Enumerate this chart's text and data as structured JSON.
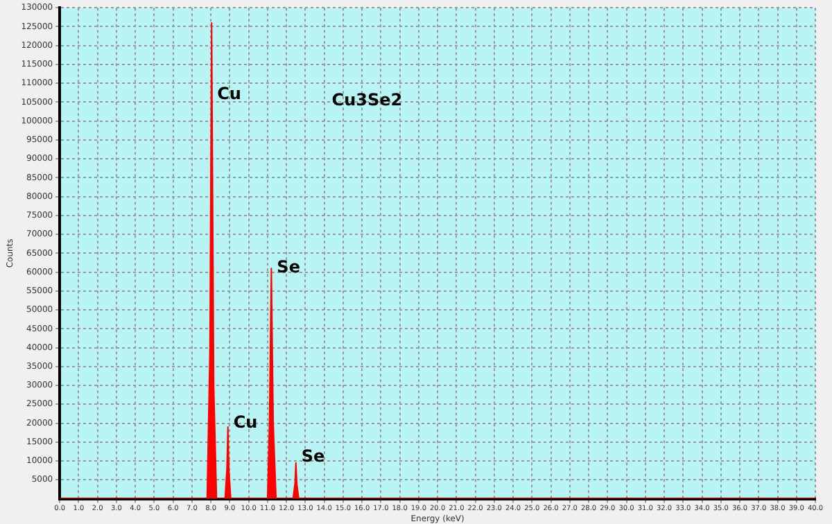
{
  "chart_data": {
    "type": "area",
    "xlabel": "Energy (keV)",
    "ylabel": "Counts",
    "x": [
      0,
      7.8,
      7.95,
      8.04,
      8.15,
      8.3,
      8.75,
      8.85,
      8.9,
      8.95,
      9.05,
      11.0,
      11.1,
      11.2,
      11.3,
      11.45,
      12.35,
      12.45,
      12.5,
      12.55,
      12.65,
      40
    ],
    "series": [
      {
        "color": "#ff0000",
        "values": [
          0,
          0,
          40000,
          126000,
          30000,
          0,
          0,
          8000,
          19000,
          8000,
          0,
          0,
          20000,
          61000,
          20000,
          0,
          0,
          4000,
          9500,
          4000,
          0,
          0
        ]
      }
    ],
    "xlim": [
      0,
      40
    ],
    "xticks": [
      {
        "value": 0,
        "label": "0.0"
      },
      {
        "value": 1,
        "label": "1.0"
      },
      {
        "value": 2,
        "label": "2.0"
      },
      {
        "value": 3,
        "label": "3.0"
      },
      {
        "value": 4,
        "label": "4.0"
      },
      {
        "value": 5,
        "label": "5.0"
      },
      {
        "value": 6,
        "label": "6.0"
      },
      {
        "value": 7,
        "label": "7.0"
      },
      {
        "value": 8,
        "label": "8.0"
      },
      {
        "value": 9,
        "label": "9.0"
      },
      {
        "value": 10,
        "label": "10.0"
      },
      {
        "value": 11,
        "label": "11.0"
      },
      {
        "value": 12,
        "label": "12.0"
      },
      {
        "value": 13,
        "label": "13.0"
      },
      {
        "value": 14,
        "label": "14.0"
      },
      {
        "value": 15,
        "label": "15.0"
      },
      {
        "value": 16,
        "label": "16.0"
      },
      {
        "value": 17,
        "label": "17.0"
      },
      {
        "value": 18,
        "label": "18.0"
      },
      {
        "value": 19,
        "label": "19.0"
      },
      {
        "value": 20,
        "label": "20.0"
      },
      {
        "value": 21,
        "label": "21.0"
      },
      {
        "value": 22,
        "label": "22.0"
      },
      {
        "value": 23,
        "label": "23.0"
      },
      {
        "value": 24,
        "label": "24.0"
      },
      {
        "value": 25,
        "label": "25.0"
      },
      {
        "value": 26,
        "label": "26.0"
      },
      {
        "value": 27,
        "label": "27.0"
      },
      {
        "value": 28,
        "label": "28.0"
      },
      {
        "value": 29,
        "label": "29.0"
      },
      {
        "value": 30,
        "label": "30.0"
      },
      {
        "value": 31,
        "label": "31.0"
      },
      {
        "value": 32,
        "label": "32.0"
      },
      {
        "value": 33,
        "label": "33.0"
      },
      {
        "value": 34,
        "label": "34.0"
      },
      {
        "value": 35,
        "label": "35.0"
      },
      {
        "value": 36,
        "label": "36.0"
      },
      {
        "value": 37,
        "label": "37.0"
      },
      {
        "value": 38,
        "label": "38.0"
      },
      {
        "value": 39,
        "label": "39.0"
      },
      {
        "value": 40,
        "label": "40.0"
      }
    ],
    "ylim": [
      0,
      130000
    ],
    "yticks": [
      5000,
      10000,
      15000,
      20000,
      25000,
      30000,
      35000,
      40000,
      45000,
      50000,
      55000,
      60000,
      65000,
      70000,
      75000,
      80000,
      85000,
      90000,
      95000,
      100000,
      105000,
      110000,
      115000,
      120000,
      125000,
      130000
    ],
    "grid": true,
    "annotations": [
      {
        "text": "Cu",
        "x": 8.04,
        "y": 107000
      },
      {
        "text": "Cu",
        "x": 8.9,
        "y": 20000
      },
      {
        "text": "Se",
        "x": 11.2,
        "y": 61000
      },
      {
        "text": "Se",
        "x": 12.5,
        "y": 11000
      },
      "Cu3Se2"
    ]
  }
}
